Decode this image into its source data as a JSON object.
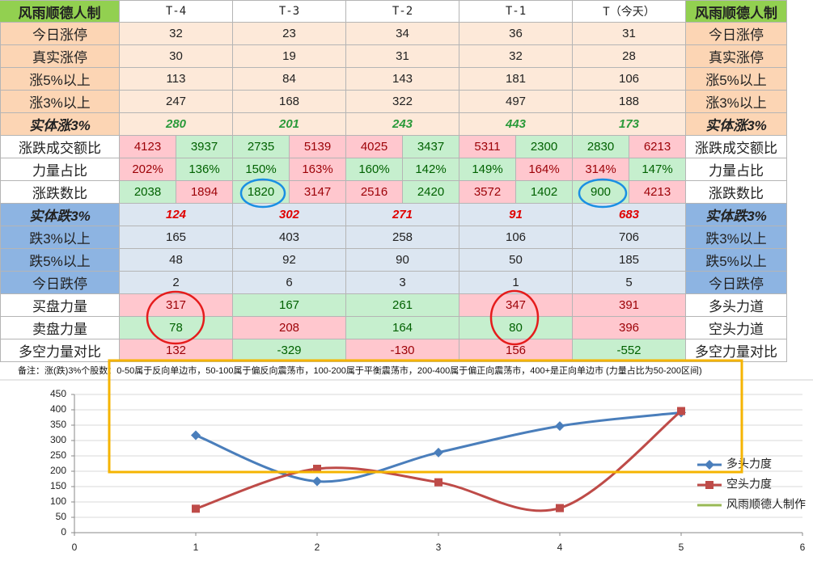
{
  "table": {
    "header": [
      "风雨顺德人制",
      "T-4",
      "T-3",
      "T-2",
      "T-1",
      "T（今天）",
      "风雨顺德人制"
    ],
    "rows": [
      {
        "label": "今日涨停",
        "values": [
          32,
          23,
          34,
          36,
          31
        ],
        "right": "今日涨停"
      },
      {
        "label": "真实涨停",
        "values": [
          30,
          19,
          31,
          32,
          28
        ],
        "right": "真实涨停"
      },
      {
        "label": "涨5%以上",
        "values": [
          113,
          84,
          143,
          181,
          106
        ],
        "right": "涨5%以上"
      },
      {
        "label": "涨3%以上",
        "values": [
          247,
          168,
          322,
          497,
          188
        ],
        "right": "涨3%以上"
      },
      {
        "label": "实体涨3%",
        "values": [
          280,
          201,
          243,
          443,
          173
        ],
        "right": "实体涨3%"
      },
      {
        "label": "涨跌成交额比",
        "values": [
          [
            4123,
            3937
          ],
          [
            2735,
            5139
          ],
          [
            4025,
            3437
          ],
          [
            5311,
            2300
          ],
          [
            2830,
            6213
          ]
        ],
        "colors": [
          [
            "pink",
            "green"
          ],
          [
            "green",
            "pink"
          ],
          [
            "pink",
            "green"
          ],
          [
            "pink",
            "green"
          ],
          [
            "green",
            "pink"
          ]
        ],
        "right": "涨跌成交额比"
      },
      {
        "label": "力量占比",
        "values": [
          [
            "202%",
            "136%"
          ],
          [
            "150%",
            "163%"
          ],
          [
            "160%",
            "142%"
          ],
          [
            "149%",
            "164%"
          ],
          [
            "314%",
            "147%"
          ]
        ],
        "colors": [
          [
            "pink",
            "green"
          ],
          [
            "green",
            "pink"
          ],
          [
            "green",
            "green"
          ],
          [
            "green",
            "pink"
          ],
          [
            "pink",
            "green"
          ]
        ],
        "right": "力量占比"
      },
      {
        "label": "涨跌数比",
        "values": [
          [
            2038,
            1894
          ],
          [
            1820,
            3147
          ],
          [
            2516,
            2420
          ],
          [
            3572,
            1402
          ],
          [
            900,
            4213
          ]
        ],
        "colors": [
          [
            "green",
            "pink"
          ],
          [
            "green",
            "pink"
          ],
          [
            "pink",
            "green"
          ],
          [
            "pink",
            "green"
          ],
          [
            "green",
            "pink"
          ]
        ],
        "right": "涨跌数比"
      },
      {
        "label": "实体跌3%",
        "values": [
          124,
          302,
          271,
          91,
          683
        ],
        "right": "实体跌3%"
      },
      {
        "label": "跌3%以上",
        "values": [
          165,
          403,
          258,
          106,
          706
        ],
        "right": "跌3%以上"
      },
      {
        "label": "跌5%以上",
        "values": [
          48,
          92,
          90,
          50,
          185
        ],
        "right": "跌5%以上"
      },
      {
        "label": "今日跌停",
        "values": [
          2,
          6,
          3,
          1,
          5
        ],
        "right": "今日跌停"
      },
      {
        "label": "买盘力量",
        "values": [
          317,
          167,
          261,
          347,
          391
        ],
        "colors": [
          "pink",
          "green",
          "green",
          "pink",
          "pink"
        ],
        "right": "多头力道"
      },
      {
        "label": "卖盘力量",
        "values": [
          78,
          208,
          164,
          80,
          396
        ],
        "colors": [
          "green",
          "pink",
          "green",
          "green",
          "pink"
        ],
        "right": "空头力道"
      },
      {
        "label": "多空力量对比",
        "values": [
          132,
          -329,
          -130,
          156,
          -552
        ],
        "colors": [
          "pink",
          "green",
          "pink",
          "pink",
          "green"
        ],
        "right": "多空力量对比"
      }
    ],
    "note": "备注：涨(跌)3%个股数：0-50属于反向单边市，50-100属于偏反向震荡市，100-200属于平衡震荡市，200-400属于偏正向震荡市，400+是正向单边市 (力量占比为50-200区间)"
  },
  "chart_data": {
    "type": "line",
    "x": [
      1,
      2,
      3,
      4,
      5
    ],
    "series": [
      {
        "name": "多头力度",
        "color": "#4a7ebb",
        "marker": "diamond",
        "values": [
          317,
          167,
          261,
          347,
          391
        ]
      },
      {
        "name": "空头力度",
        "color": "#be4b48",
        "marker": "square",
        "values": [
          78,
          208,
          164,
          80,
          396
        ]
      },
      {
        "name": "风雨顺德人制作",
        "color": "#98b954"
      }
    ],
    "xlim": [
      0,
      6
    ],
    "xticks": [
      0,
      1,
      2,
      3,
      4,
      5,
      6
    ],
    "ylim": [
      0,
      450
    ],
    "yticks": [
      0,
      50,
      100,
      150,
      200,
      250,
      300,
      350,
      400,
      450
    ],
    "grid": true
  }
}
